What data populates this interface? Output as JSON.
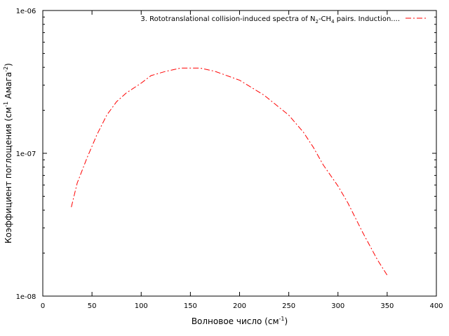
{
  "chart_data": {
    "type": "line",
    "title": "",
    "xlabel": "Волновое число (см",
    "xlabel_sup": "-1",
    "xlabel_end": ")",
    "ylabel": "Коэффициент поглощения (см",
    "ylabel_sup1": "-1",
    "ylabel_mid": " Амага",
    "ylabel_sup2": "-2",
    "ylabel_end": ")",
    "xlim": [
      0,
      400
    ],
    "ylim": [
      1e-08,
      1e-06
    ],
    "yscale": "log",
    "grid": false,
    "legend_position": "top-right",
    "x_ticks": [
      0,
      50,
      100,
      150,
      200,
      250,
      300,
      350,
      400
    ],
    "x_tick_labels": [
      "0",
      "50",
      "100",
      "150",
      "200",
      "250",
      "300",
      "350",
      "400"
    ],
    "y_major_ticks": [
      1e-08,
      1e-07,
      1e-06
    ],
    "y_tick_labels": [
      "1e-08",
      "1e-07",
      "1e-06"
    ],
    "series": [
      {
        "name": "3. Rototranslational collision-induced spectra of N",
        "name_sub1": "2",
        "name_mid": "-CH",
        "name_sub2": "4",
        "name_end": " pairs. Induction....",
        "color": "#ff0000",
        "line_style": "dash-dot",
        "x": [
          29,
          35,
          45,
          55,
          65,
          75,
          85,
          100,
          110,
          125,
          140,
          160,
          175,
          200,
          225,
          250,
          265,
          275,
          285,
          300,
          310,
          325,
          340,
          350
        ],
        "y": [
          4.2e-08,
          6.2e-08,
          9.3e-08,
          1.35e-07,
          1.85e-07,
          2.3e-07,
          2.65e-07,
          3.1e-07,
          3.5e-07,
          3.75e-07,
          3.95e-07,
          3.95e-07,
          3.75e-07,
          3.25e-07,
          2.55e-07,
          1.85e-07,
          1.4e-07,
          1.1e-07,
          8.3e-08,
          5.9e-08,
          4.5e-08,
          2.8e-08,
          1.8e-08,
          1.4e-08
        ]
      }
    ]
  }
}
